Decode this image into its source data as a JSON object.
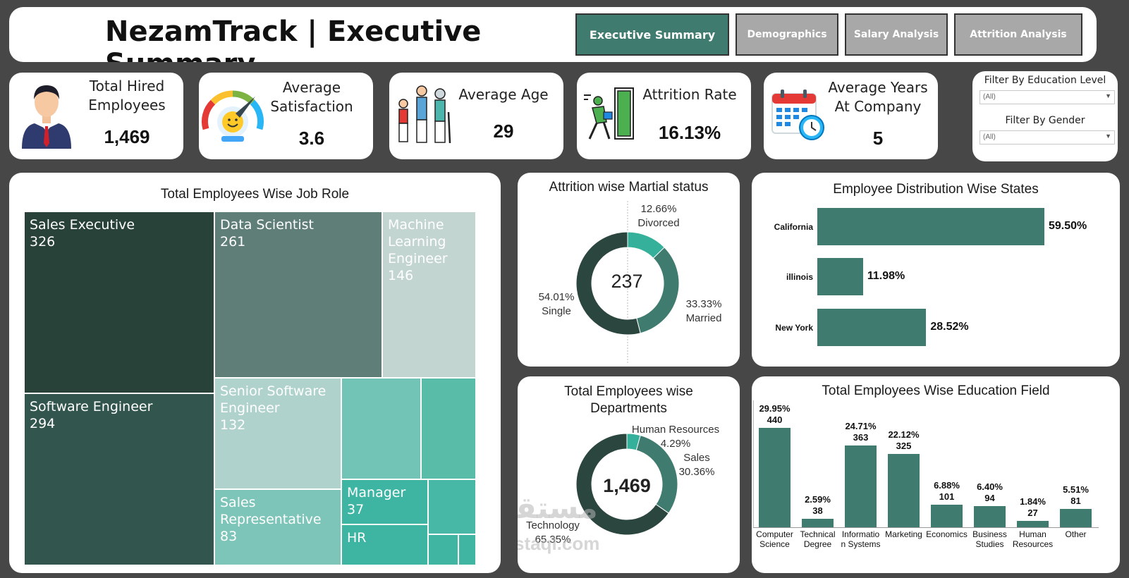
{
  "header": {
    "title": "NezamTrack | Executive Summary",
    "nav": [
      "Executive Summary",
      "Demographics",
      "Salary Analysis",
      "Attrition Analysis"
    ],
    "active_nav": "Executive Summary"
  },
  "kpis": {
    "total_hired": {
      "label": "Total Hired Employees",
      "value": "1,469"
    },
    "avg_satisfaction": {
      "label": "Average Satisfaction",
      "value": "3.6"
    },
    "avg_age": {
      "label": "Average Age",
      "value": "29"
    },
    "attrition_rate": {
      "label": "Attrition Rate",
      "value": "16.13%"
    },
    "avg_years": {
      "label": "Average Years At Company",
      "value": "5"
    }
  },
  "filters": {
    "education": {
      "label": "Filter By Education Level",
      "value": "(All)"
    },
    "gender": {
      "label": "Filter By Gender",
      "value": "(All)"
    }
  },
  "watermark": {
    "line1": "مستقل",
    "line2": "mostaql.com"
  },
  "colors": {
    "accent": "#3f7c6f",
    "background": "#474747",
    "nav_active": "#3f7c6f",
    "nav_inactive": "#a8a8a8"
  },
  "chart_data": [
    {
      "id": "job_role",
      "type": "treemap",
      "title": "Total Employees Wise Job Role",
      "items": [
        {
          "name": "Sales Executive",
          "value": 326
        },
        {
          "name": "Software Engineer",
          "value": 294
        },
        {
          "name": "Data Scientist",
          "value": 261
        },
        {
          "name": "Machine Learning Engineer",
          "value": 146
        },
        {
          "name": "Senior Software Engineer",
          "value": 132
        },
        {
          "name": "Sales Representative",
          "value": 83
        },
        {
          "name": "Manager",
          "value": 37
        },
        {
          "name": "HR",
          "value": ""
        }
      ]
    },
    {
      "id": "marital",
      "type": "pie",
      "title": "Attrition wise Martial status",
      "center": "237",
      "slices": [
        {
          "name": "Divorced",
          "pct": 12.66
        },
        {
          "name": "Married",
          "pct": 33.33
        },
        {
          "name": "Single",
          "pct": 54.01
        }
      ]
    },
    {
      "id": "states",
      "type": "bar",
      "title": "Employee Distribution Wise States",
      "categories": [
        "California",
        "illinois",
        "New York"
      ],
      "values": [
        59.5,
        11.98,
        28.52
      ],
      "unit": "%"
    },
    {
      "id": "departments",
      "type": "pie",
      "title": "Total Employees wise Departments",
      "center": "1,469",
      "slices": [
        {
          "name": "Human Resources",
          "pct": 4.29
        },
        {
          "name": "Sales",
          "pct": 30.36
        },
        {
          "name": "Technology",
          "pct": 65.35
        }
      ]
    },
    {
      "id": "education",
      "type": "bar",
      "title": "Total Employees Wise Education Field",
      "categories": [
        "Computer Science",
        "Technical Degree",
        "Information Systems",
        "Marketing",
        "Economics",
        "Business Studies",
        "Human Resources",
        "Other"
      ],
      "category_labels": [
        [
          "Computer",
          "Science"
        ],
        [
          "Technical",
          "Degree"
        ],
        [
          "Informatio",
          "n Systems"
        ],
        [
          "Marketing"
        ],
        [
          "Economics"
        ],
        [
          "Business",
          "Studies"
        ],
        [
          "Human",
          "Resources"
        ],
        [
          "Other"
        ]
      ],
      "values": [
        440,
        38,
        363,
        325,
        101,
        94,
        27,
        81
      ],
      "percents": [
        "29.95%",
        "2.59%",
        "24.71%",
        "22.12%",
        "6.88%",
        "6.40%",
        "1.84%",
        "5.51%"
      ],
      "ylim": [
        0,
        440
      ]
    }
  ]
}
